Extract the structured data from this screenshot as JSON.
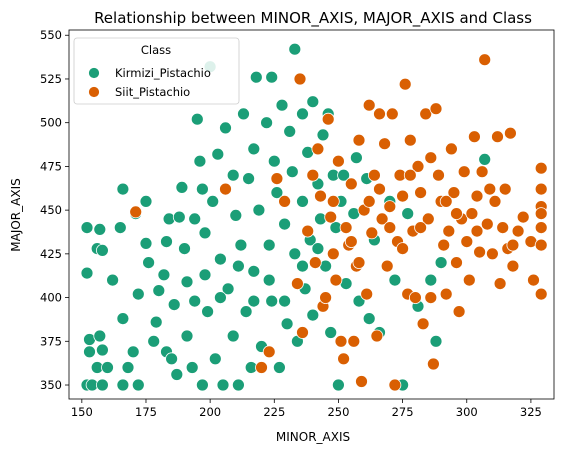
{
  "chart_data": {
    "type": "scatter",
    "title": "Relationship between MINOR_AXIS, MAJOR_AXIS and Class",
    "xlabel": "MINOR_AXIS",
    "ylabel": "MAJOR_AXIS",
    "xlim": [
      145,
      334
    ],
    "ylim": [
      342,
      553
    ],
    "xticks": [
      "150",
      "175",
      "200",
      "225",
      "250",
      "275",
      "300",
      "325"
    ],
    "yticks": [
      "350",
      "375",
      "400",
      "425",
      "450",
      "475",
      "500",
      "525",
      "550"
    ],
    "grid": false,
    "legend": {
      "title": "Class",
      "placement": "top-left",
      "entries": [
        {
          "label": "Kirmizi_Pistachio",
          "color": "#1b9e77"
        },
        {
          "label": "Siit_Pistachio",
          "color": "#d95f02"
        }
      ]
    },
    "series": [
      {
        "name": "Kirmizi_Pistachio",
        "color": "#1b9e77",
        "points": [
          [
            152,
            440
          ],
          [
            152,
            414
          ],
          [
            153,
            376
          ],
          [
            153,
            369
          ],
          [
            152,
            350
          ],
          [
            154,
            350
          ],
          [
            157,
            439
          ],
          [
            156,
            428
          ],
          [
            158,
            427
          ],
          [
            157,
            378
          ],
          [
            158,
            370
          ],
          [
            156,
            360
          ],
          [
            158,
            350
          ],
          [
            162,
            410
          ],
          [
            160,
            360
          ],
          [
            166,
            462
          ],
          [
            165,
            440
          ],
          [
            166,
            388
          ],
          [
            166,
            350
          ],
          [
            168,
            360
          ],
          [
            171,
            448
          ],
          [
            170,
            369
          ],
          [
            172,
            402
          ],
          [
            172,
            350
          ],
          [
            175,
            455
          ],
          [
            175,
            431
          ],
          [
            176,
            420
          ],
          [
            178,
            375
          ],
          [
            179,
            386
          ],
          [
            180,
            404
          ],
          [
            182,
            413
          ],
          [
            183,
            432
          ],
          [
            184,
            445
          ],
          [
            183,
            369
          ],
          [
            186,
            396
          ],
          [
            185,
            365
          ],
          [
            187,
            356
          ],
          [
            189,
            463
          ],
          [
            188,
            446
          ],
          [
            190,
            428
          ],
          [
            191,
            409
          ],
          [
            191,
            378
          ],
          [
            193,
            360
          ],
          [
            194,
            445
          ],
          [
            194,
            398
          ],
          [
            195,
            502
          ],
          [
            196,
            478
          ],
          [
            197,
            462
          ],
          [
            197,
            350
          ],
          [
            198,
            437
          ],
          [
            200,
            532
          ],
          [
            199,
            392
          ],
          [
            201,
            455
          ],
          [
            202,
            365
          ],
          [
            203,
            482
          ],
          [
            204,
            422
          ],
          [
            205,
            350
          ],
          [
            206,
            497
          ],
          [
            207,
            405
          ],
          [
            209,
            470
          ],
          [
            209,
            378
          ],
          [
            210,
            447
          ],
          [
            211,
            350
          ],
          [
            212,
            430
          ],
          [
            213,
            505
          ],
          [
            214,
            392
          ],
          [
            215,
            468
          ],
          [
            216,
            360
          ],
          [
            217,
            485
          ],
          [
            217,
            415
          ],
          [
            218,
            526
          ],
          [
            219,
            450
          ],
          [
            220,
            372
          ],
          [
            222,
            500
          ],
          [
            223,
            430
          ],
          [
            224,
            526
          ],
          [
            224,
            398
          ],
          [
            225,
            478
          ],
          [
            226,
            460
          ],
          [
            227,
            360
          ],
          [
            228,
            510
          ],
          [
            229,
            442
          ],
          [
            230,
            385
          ],
          [
            231,
            495
          ],
          [
            232,
            472
          ],
          [
            233,
            542
          ],
          [
            233,
            425
          ],
          [
            234,
            375
          ],
          [
            236,
            505
          ],
          [
            236,
            455
          ],
          [
            237,
            405
          ],
          [
            238,
            483
          ],
          [
            239,
            433
          ],
          [
            240,
            512
          ],
          [
            240,
            390
          ],
          [
            242,
            465
          ],
          [
            243,
            445
          ],
          [
            244,
            493
          ],
          [
            245,
            418
          ],
          [
            246,
            505
          ],
          [
            247,
            380
          ],
          [
            248,
            470
          ],
          [
            249,
            440
          ],
          [
            250,
            350
          ],
          [
            251,
            455
          ],
          [
            253,
            408
          ],
          [
            254,
            430
          ],
          [
            256,
            448
          ],
          [
            258,
            398
          ],
          [
            261,
            468
          ],
          [
            262,
            388
          ],
          [
            264,
            433
          ],
          [
            266,
            380
          ],
          [
            270,
            455
          ],
          [
            272,
            410
          ],
          [
            275,
            350
          ],
          [
            277,
            448
          ],
          [
            281,
            395
          ],
          [
            286,
            410
          ],
          [
            288,
            375
          ],
          [
            290,
            420
          ],
          [
            307,
            479
          ],
          [
            198,
            413
          ],
          [
            204,
            400
          ],
          [
            211,
            418
          ],
          [
            217,
            398
          ],
          [
            223,
            410
          ],
          [
            229,
            398
          ],
          [
            236,
            418
          ],
          [
            242,
            428
          ],
          [
            252,
            470
          ],
          [
            257,
            480
          ]
        ]
      },
      {
        "name": "Siit_Pistachio",
        "color": "#d95f02",
        "points": [
          [
            171,
            449
          ],
          [
            206,
            462
          ],
          [
            220,
            360
          ],
          [
            223,
            369
          ],
          [
            226,
            468
          ],
          [
            229,
            455
          ],
          [
            234,
            408
          ],
          [
            235,
            525
          ],
          [
            236,
            380
          ],
          [
            238,
            438
          ],
          [
            240,
            470
          ],
          [
            241,
            420
          ],
          [
            243,
            458
          ],
          [
            244,
            395
          ],
          [
            245,
            400
          ],
          [
            246,
            502
          ],
          [
            247,
            446
          ],
          [
            248,
            425
          ],
          [
            249,
            410
          ],
          [
            250,
            478
          ],
          [
            251,
            375
          ],
          [
            252,
            365
          ],
          [
            253,
            440
          ],
          [
            254,
            430
          ],
          [
            255,
            465
          ],
          [
            256,
            375
          ],
          [
            257,
            418
          ],
          [
            258,
            490
          ],
          [
            259,
            352
          ],
          [
            260,
            450
          ],
          [
            261,
            402
          ],
          [
            262,
            510
          ],
          [
            263,
            437
          ],
          [
            264,
            470
          ],
          [
            265,
            378
          ],
          [
            266,
            505
          ],
          [
            267,
            445
          ],
          [
            268,
            488
          ],
          [
            269,
            418
          ],
          [
            270,
            452
          ],
          [
            271,
            505
          ],
          [
            272,
            350
          ],
          [
            273,
            432
          ],
          [
            274,
            470
          ],
          [
            275,
            458
          ],
          [
            276,
            522
          ],
          [
            277,
            402
          ],
          [
            278,
            490
          ],
          [
            279,
            438
          ],
          [
            280,
            400
          ],
          [
            281,
            475
          ],
          [
            282,
            460
          ],
          [
            283,
            385
          ],
          [
            284,
            505
          ],
          [
            285,
            445
          ],
          [
            286,
            400
          ],
          [
            287,
            362
          ],
          [
            288,
            508
          ],
          [
            289,
            470
          ],
          [
            290,
            455
          ],
          [
            291,
            430
          ],
          [
            292,
            402
          ],
          [
            293,
            438
          ],
          [
            294,
            485
          ],
          [
            295,
            460
          ],
          [
            296,
            420
          ],
          [
            297,
            392
          ],
          [
            298,
            445
          ],
          [
            299,
            472
          ],
          [
            300,
            432
          ],
          [
            301,
            410
          ],
          [
            302,
            448
          ],
          [
            303,
            492
          ],
          [
            304,
            458
          ],
          [
            305,
            426
          ],
          [
            306,
            472
          ],
          [
            307,
            536
          ],
          [
            308,
            442
          ],
          [
            309,
            462
          ],
          [
            310,
            425
          ],
          [
            311,
            455
          ],
          [
            312,
            492
          ],
          [
            313,
            408
          ],
          [
            314,
            440
          ],
          [
            315,
            462
          ],
          [
            316,
            428
          ],
          [
            317,
            494
          ],
          [
            318,
            430
          ],
          [
            320,
            438
          ],
          [
            322,
            446
          ],
          [
            325,
            432
          ],
          [
            326,
            410
          ],
          [
            329,
            474
          ],
          [
            329,
            462
          ],
          [
            329,
            452
          ],
          [
            329,
            448
          ],
          [
            329,
            440
          ],
          [
            329,
            430
          ],
          [
            329,
            402
          ],
          [
            318,
            418
          ],
          [
            296,
            448
          ],
          [
            286,
            480
          ],
          [
            278,
            470
          ],
          [
            270,
            440
          ],
          [
            262,
            455
          ],
          [
            255,
            432
          ],
          [
            248,
            455
          ],
          [
            242,
            485
          ],
          [
            258,
            420
          ],
          [
            275,
            428
          ],
          [
            292,
            455
          ],
          [
            304,
            438
          ],
          [
            266,
            462
          ],
          [
            282,
            440
          ]
        ]
      }
    ]
  }
}
